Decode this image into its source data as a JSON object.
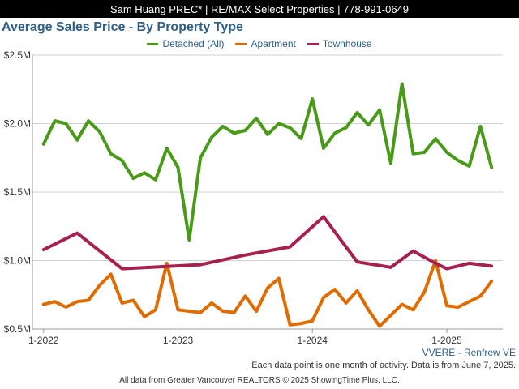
{
  "header": {
    "agent_banner": "Sam Huang PREC* | RE/MAX Select Properties | 778-991-0649"
  },
  "footer": {
    "region": "VVERE - Renfrew VE",
    "note": "Each data point is one month of activity. Data is from June 7, 2025.",
    "credit": "All data from Greater Vancouver REALTORS © 2025 ShowingTime Plus, LLC."
  },
  "colors": {
    "title": "#2e5f86",
    "detached": "#4a9a1a",
    "apartment": "#e06c00",
    "townhouse": "#a8204f",
    "grid": "#d0d0d0"
  },
  "chart_data": {
    "type": "line",
    "title": "Average Sales Price - By Property Type",
    "xlabel": "",
    "ylabel": "",
    "x_unit": "month",
    "xlim": [
      "2021-12",
      "2025-06"
    ],
    "ylim": [
      500000,
      2500000
    ],
    "y_ticks": [
      500000,
      1000000,
      1500000,
      2000000,
      2500000
    ],
    "y_tick_labels": [
      "$0.5M",
      "$1.0M",
      "$1.5M",
      "$2.0M",
      "$2.5M"
    ],
    "x_ticks": [
      "2022-01",
      "2023-01",
      "2024-01",
      "2025-01"
    ],
    "x_tick_labels": [
      "1-2022",
      "1-2023",
      "1-2024",
      "1-2025"
    ],
    "grid": true,
    "legend_position": "top",
    "series": [
      {
        "name": "Detached (All)",
        "color": "#4a9a1a",
        "points": [
          [
            "2022-01",
            1850000
          ],
          [
            "2022-02",
            2020000
          ],
          [
            "2022-03",
            2000000
          ],
          [
            "2022-04",
            1880000
          ],
          [
            "2022-05",
            2020000
          ],
          [
            "2022-06",
            1940000
          ],
          [
            "2022-07",
            1780000
          ],
          [
            "2022-08",
            1730000
          ],
          [
            "2022-09",
            1600000
          ],
          [
            "2022-10",
            1640000
          ],
          [
            "2022-11",
            1590000
          ],
          [
            "2022-12",
            1820000
          ],
          [
            "2023-01",
            1680000
          ],
          [
            "2023-02",
            1150000
          ],
          [
            "2023-03",
            1750000
          ],
          [
            "2023-04",
            1900000
          ],
          [
            "2023-05",
            1980000
          ],
          [
            "2023-06",
            1930000
          ],
          [
            "2023-07",
            1950000
          ],
          [
            "2023-08",
            2040000
          ],
          [
            "2023-09",
            1920000
          ],
          [
            "2023-10",
            2000000
          ],
          [
            "2023-11",
            1970000
          ],
          [
            "2023-12",
            1890000
          ],
          [
            "2024-01",
            2180000
          ],
          [
            "2024-02",
            1820000
          ],
          [
            "2024-03",
            1930000
          ],
          [
            "2024-04",
            1970000
          ],
          [
            "2024-05",
            2080000
          ],
          [
            "2024-06",
            1990000
          ],
          [
            "2024-07",
            2100000
          ],
          [
            "2024-08",
            1710000
          ],
          [
            "2024-09",
            2290000
          ],
          [
            "2024-10",
            1780000
          ],
          [
            "2024-11",
            1790000
          ],
          [
            "2024-12",
            1890000
          ],
          [
            "2025-01",
            1790000
          ],
          [
            "2025-02",
            1730000
          ],
          [
            "2025-03",
            1690000
          ],
          [
            "2025-04",
            1980000
          ],
          [
            "2025-05",
            1680000
          ]
        ]
      },
      {
        "name": "Apartment",
        "color": "#e06c00",
        "points": [
          [
            "2022-01",
            680000
          ],
          [
            "2022-02",
            700000
          ],
          [
            "2022-03",
            660000
          ],
          [
            "2022-04",
            700000
          ],
          [
            "2022-05",
            710000
          ],
          [
            "2022-06",
            820000
          ],
          [
            "2022-07",
            900000
          ],
          [
            "2022-08",
            690000
          ],
          [
            "2022-09",
            710000
          ],
          [
            "2022-10",
            590000
          ],
          [
            "2022-11",
            640000
          ],
          [
            "2022-12",
            980000
          ],
          [
            "2023-01",
            640000
          ],
          [
            "2023-02",
            630000
          ],
          [
            "2023-03",
            620000
          ],
          [
            "2023-04",
            690000
          ],
          [
            "2023-05",
            630000
          ],
          [
            "2023-06",
            620000
          ],
          [
            "2023-07",
            740000
          ],
          [
            "2023-08",
            630000
          ],
          [
            "2023-09",
            800000
          ],
          [
            "2023-10",
            870000
          ],
          [
            "2023-11",
            530000
          ],
          [
            "2023-12",
            540000
          ],
          [
            "2024-01",
            560000
          ],
          [
            "2024-02",
            730000
          ],
          [
            "2024-03",
            790000
          ],
          [
            "2024-04",
            690000
          ],
          [
            "2024-05",
            780000
          ],
          [
            "2024-06",
            640000
          ],
          [
            "2024-07",
            520000
          ],
          [
            "2024-08",
            600000
          ],
          [
            "2024-09",
            680000
          ],
          [
            "2024-10",
            640000
          ],
          [
            "2024-11",
            770000
          ],
          [
            "2024-12",
            1000000
          ],
          [
            "2025-01",
            670000
          ],
          [
            "2025-02",
            660000
          ],
          [
            "2025-03",
            700000
          ],
          [
            "2025-04",
            740000
          ],
          [
            "2025-05",
            850000
          ]
        ]
      },
      {
        "name": "Townhouse",
        "color": "#a8204f",
        "points": [
          [
            "2022-01",
            1080000
          ],
          [
            "2022-04",
            1200000
          ],
          [
            "2022-08",
            940000
          ],
          [
            "2023-03",
            970000
          ],
          [
            "2023-07",
            1040000
          ],
          [
            "2023-11",
            1100000
          ],
          [
            "2024-02",
            1320000
          ],
          [
            "2024-05",
            990000
          ],
          [
            "2024-08",
            950000
          ],
          [
            "2024-10",
            1070000
          ],
          [
            "2024-12",
            980000
          ],
          [
            "2025-01",
            940000
          ],
          [
            "2025-03",
            980000
          ],
          [
            "2025-05",
            960000
          ]
        ]
      }
    ]
  }
}
